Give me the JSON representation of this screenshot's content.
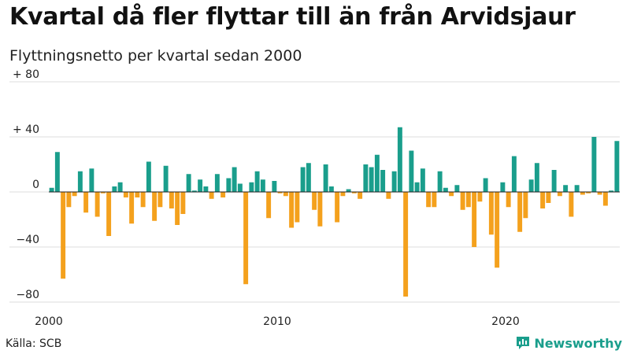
{
  "header": {
    "title": "Kvartal då fler flyttar till än från Arvidsjaur",
    "subtitle": "Flyttningsnetto per kvartal sedan 2000"
  },
  "footer": {
    "source": "Källa: SCB",
    "brand": "Newsworthy"
  },
  "colors": {
    "positive": "#1a9e8c",
    "negative": "#f4a11d",
    "grid": "#dddddd",
    "brand": "#1a9e8c"
  },
  "chart_data": {
    "type": "bar",
    "title": "Kvartal då fler flyttar till än från Arvidsjaur",
    "subtitle": "Flyttningsnetto per kvartal sedan 2000",
    "xlabel": "",
    "ylabel": "",
    "ylim": [
      -80,
      80
    ],
    "yticks": [
      80,
      40,
      0,
      -40,
      -80
    ],
    "ytick_labels": [
      "+ 80",
      "+ 40",
      "0",
      "−40",
      "−80"
    ],
    "xticks": [
      2000,
      2010,
      2020
    ],
    "xtick_labels": [
      "2000",
      "2010",
      "2020"
    ],
    "x_start": 2000,
    "grid": true,
    "legend": "none",
    "series": [
      {
        "values": [
          3,
          29,
          -63,
          -11,
          -3,
          15,
          -15,
          17,
          -18,
          -1,
          -32,
          4,
          7,
          -4,
          -23,
          -4,
          -11,
          22,
          -21,
          -11,
          19,
          -12,
          -24,
          -16,
          13,
          1,
          9,
          4,
          -5,
          13,
          -4,
          10,
          18,
          6,
          -67,
          7,
          15,
          9,
          -19,
          8,
          -1,
          -3,
          -26,
          -22,
          18,
          21,
          -13,
          -25,
          20,
          4,
          -22,
          -3,
          2,
          -1,
          -5,
          20,
          18,
          27,
          16,
          -5,
          15,
          47,
          -76,
          30,
          7,
          17,
          -11,
          -11,
          15,
          3,
          -3,
          5,
          -13,
          -11,
          -40,
          -7,
          10,
          -31,
          -55,
          7,
          -11,
          26,
          -29,
          -19,
          9,
          21,
          -12,
          -8,
          16,
          -3,
          5,
          -18,
          5,
          -2,
          -1,
          40,
          -2,
          -10,
          1,
          37
        ]
      }
    ]
  }
}
